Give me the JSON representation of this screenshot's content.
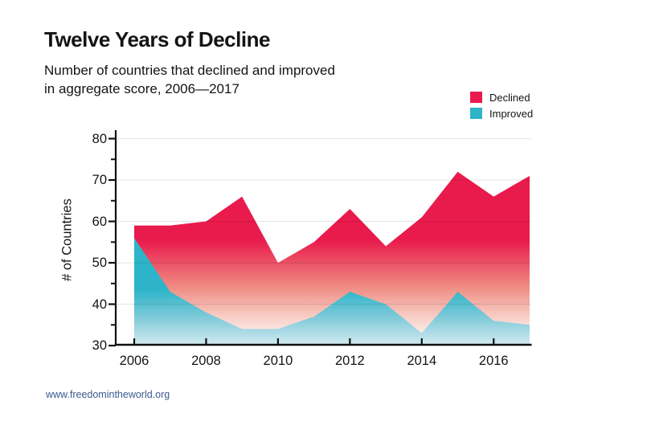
{
  "header": {
    "title": "Twelve Years of Decline",
    "subtitle_line1": "Number of countries that declined and improved",
    "subtitle_line2": "in aggregate score, 2006—2017"
  },
  "legend": [
    {
      "label": "Declined",
      "color": "#e91a4c"
    },
    {
      "label": "Improved",
      "color": "#2eb4c8"
    }
  ],
  "footer": {
    "url": "www.freedomintheworld.org"
  },
  "chart_data": {
    "type": "area",
    "title": "Twelve Years of Decline",
    "subtitle": "Number of countries that declined and improved in aggregate score, 2006—2017",
    "x": [
      2006,
      2007,
      2008,
      2009,
      2010,
      2011,
      2012,
      2013,
      2014,
      2015,
      2016,
      2017
    ],
    "series": [
      {
        "name": "Declined",
        "color": "#e91a4c",
        "values": [
          59,
          59,
          60,
          66,
          50,
          55,
          63,
          54,
          61,
          72,
          66,
          71
        ]
      },
      {
        "name": "Improved",
        "color": "#2eb4c8",
        "values": [
          56,
          43,
          38,
          34,
          34,
          37,
          43,
          40,
          33,
          43,
          36,
          35
        ]
      }
    ],
    "xlabel": "",
    "ylabel": "# of Countries",
    "ylim": [
      30,
      82
    ],
    "yticks": [
      30,
      40,
      50,
      60,
      70,
      80
    ],
    "yticks_minor": [
      35,
      45,
      55,
      65,
      75
    ],
    "xticks": [
      2006,
      2008,
      2010,
      2012,
      2014,
      2016
    ],
    "grid": "horizontal light-gray lines at major y ticks, drawn over area fills",
    "fill_style": "vertical gradient fading to white toward bottom",
    "legend_position": "top-right",
    "axis_color": "#111111",
    "gridline_color": "#e9e9e9"
  }
}
